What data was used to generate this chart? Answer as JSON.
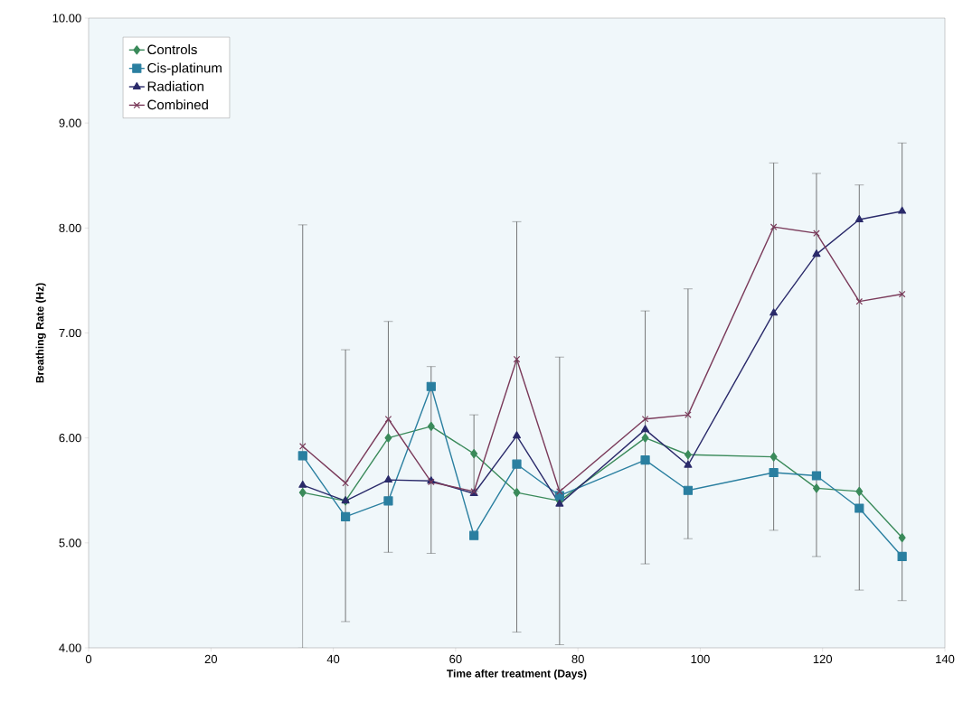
{
  "chart_data": {
    "type": "line",
    "xlabel": "Time after treatment (Days)",
    "ylabel": "Breathing Rate (Hz)",
    "x": [
      35,
      42,
      49,
      56,
      63,
      70,
      77,
      91,
      98,
      112,
      119,
      126,
      133
    ],
    "xlim": [
      0,
      140
    ],
    "xticks": [
      0,
      20,
      40,
      60,
      80,
      100,
      120,
      140
    ],
    "ylim": [
      4,
      10
    ],
    "yticks": [
      {
        "value": 4,
        "label": "4.00"
      },
      {
        "value": 5,
        "label": "5.00"
      },
      {
        "value": 6,
        "label": "6.00"
      },
      {
        "value": 7,
        "label": "7.00"
      },
      {
        "value": 8,
        "label": "8.00"
      },
      {
        "value": 9,
        "label": "9.00"
      },
      {
        "value": 10,
        "label": "10.00"
      }
    ],
    "grid": false,
    "legend": "top left",
    "line_style": "solid",
    "series": [
      {
        "name": "Controls",
        "color": "#3a8a5a",
        "marker": "diamond",
        "values": [
          5.48,
          5.4,
          6.0,
          6.11,
          5.85,
          5.48,
          5.4,
          6.0,
          5.84,
          5.82,
          5.52,
          5.49,
          5.05
        ]
      },
      {
        "name": "Cis-platinum",
        "color": "#2a7fa0",
        "marker": "square",
        "values": [
          5.83,
          5.25,
          5.4,
          6.49,
          5.07,
          5.75,
          5.45,
          5.79,
          5.5,
          5.67,
          5.64,
          5.33,
          4.87
        ]
      },
      {
        "name": "Radiation",
        "color": "#2a2a6a",
        "marker": "triangle",
        "values": [
          5.55,
          5.4,
          5.6,
          5.59,
          5.47,
          6.02,
          5.37,
          6.08,
          5.74,
          7.19,
          7.75,
          8.08,
          8.16
        ]
      },
      {
        "name": "Combined",
        "color": "#7a3a5a",
        "marker": "cross",
        "values": [
          5.92,
          5.57,
          6.18,
          5.58,
          5.49,
          6.75,
          5.49,
          6.18,
          6.22,
          8.01,
          7.95,
          7.3,
          7.37
        ],
        "errors": [
          [
            4.0,
            8.03
          ],
          [
            4.25,
            6.84
          ],
          [
            4.91,
            7.11
          ],
          [
            4.9,
            6.68
          ],
          [
            5.49,
            6.22
          ],
          [
            4.15,
            8.06
          ],
          [
            4.03,
            6.77
          ],
          [
            4.8,
            7.21
          ],
          [
            5.04,
            7.42
          ],
          [
            5.12,
            8.62
          ],
          [
            4.87,
            8.52
          ],
          [
            4.55,
            8.41
          ],
          [
            4.45,
            8.81
          ]
        ]
      }
    ]
  }
}
